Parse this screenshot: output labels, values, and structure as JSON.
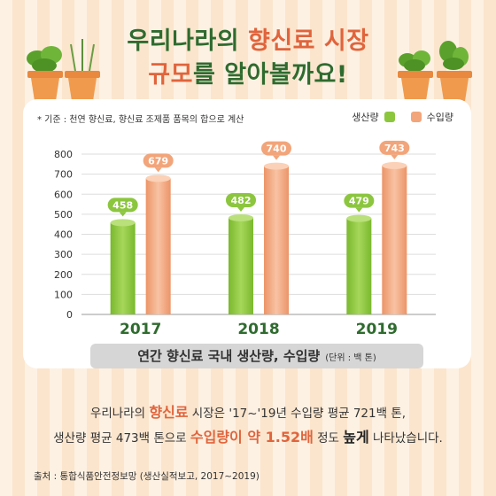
{
  "title": {
    "line1_a": "우리나라의 ",
    "line1_b": "향신료 시장",
    "line2_a": "규모",
    "line2_b": "를 알아볼까요!"
  },
  "note": "* 기준 : 천연 향신료, 향신료 조제품 품목의 합으로 계산",
  "caption": {
    "main": "연간 향신료 국내 생산량, 수입량",
    "unit": "(단위 : 백 톤)"
  },
  "description": {
    "l1_a": "우리나라의 ",
    "l1_b": "향신료",
    "l1_c": " 시장은 '17~'19년 수입량 평균 721백 톤,",
    "l2_a": "생산량 평균 473백 톤으로 ",
    "l2_b": "수입량이 약 1.52배",
    "l2_c": " 정도 ",
    "l2_d": "높게",
    "l2_e": " 나타났습니다."
  },
  "source": "출처 : 통합식품안전정보망 (생산실적보고, 2017~2019)",
  "colors": {
    "production": "#8cc63f",
    "import": "#f2a57a",
    "title_green": "#2f6b2f",
    "accent": "#e0643c"
  },
  "chart_data": {
    "type": "bar",
    "categories": [
      "2017",
      "2018",
      "2019"
    ],
    "series": [
      {
        "name": "생산량",
        "values": [
          458,
          482,
          479
        ]
      },
      {
        "name": "수입량",
        "values": [
          679,
          740,
          743
        ]
      }
    ],
    "yticks": [
      "0",
      "100",
      "200",
      "300",
      "400",
      "500",
      "600",
      "700",
      "800"
    ],
    "ylim": [
      0,
      800
    ],
    "legend": "top-right",
    "grid": true
  }
}
